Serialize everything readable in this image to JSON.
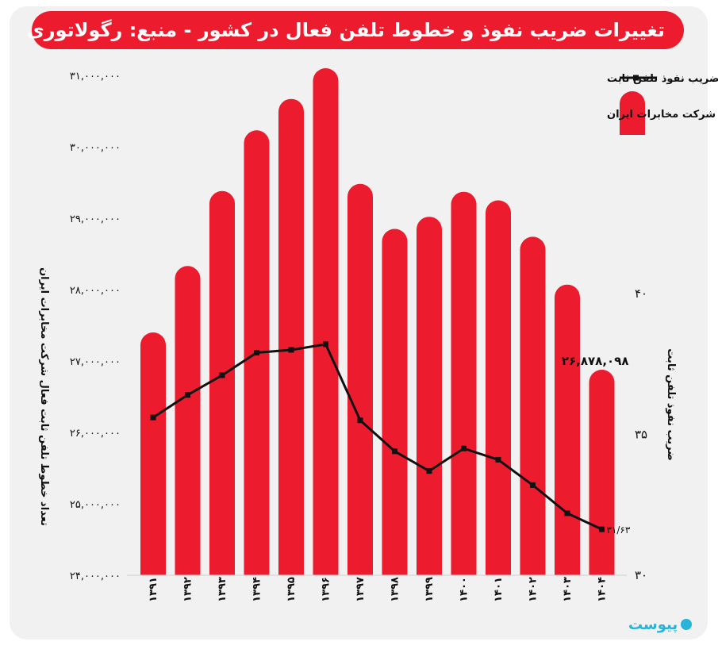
{
  "title": "تغییرات ضریب نفوذ و خطوط تلفن فعال در کشور - منبع: رگولاتوری",
  "logo_text": "پیوست",
  "colors": {
    "bar": "#ec1c2e",
    "line": "#111111",
    "background": "#f1f1f2",
    "brand": "#28b3d8"
  },
  "chart_data": {
    "type": "bar",
    "categories": [
      "۱۳۹۱",
      "۱۳۹۲",
      "۱۳۹۳",
      "۱۳۹۴",
      "۱۳۹۵",
      "۱۳۹۶",
      "۱۳۹۷",
      "۱۳۹۸",
      "۱۳۹۹",
      "۱۴۰۰",
      "۱۴۰۱",
      "۱۴۰۲",
      "۱۴۰۳",
      "۱۴۰۴"
    ],
    "series": [
      {
        "name": "تعداد خطوط تلفن ثابت فعال شرکت مخابرات ایران",
        "type": "bar",
        "axis": "left",
        "values": [
          27400000,
          28330000,
          29380000,
          30230000,
          30670000,
          31100000,
          29480000,
          28850000,
          29020000,
          29370000,
          29250000,
          28740000,
          28070000,
          26878098
        ]
      },
      {
        "name": "ضریب نفوذ تلفن ثابت",
        "type": "line",
        "axis": "right",
        "values": [
          35.6,
          36.4,
          37.1,
          37.9,
          38.0,
          38.2,
          35.5,
          34.4,
          33.7,
          34.5,
          34.1,
          33.2,
          32.2,
          31.63
        ]
      }
    ],
    "y_left": {
      "label": "تعداد خطوط تلفن ثابت فعال شرکت مخابرات ایران",
      "range": [
        24000000,
        31000000
      ],
      "ticks": [
        "۲۴,۰۰۰,۰۰۰",
        "۲۵,۰۰۰,۰۰۰",
        "۲۶,۰۰۰,۰۰۰",
        "۲۷,۰۰۰,۰۰۰",
        "۲۸,۰۰۰,۰۰۰",
        "۲۹,۰۰۰,۰۰۰",
        "۳۰,۰۰۰,۰۰۰",
        "۳۱,۰۰۰,۰۰۰"
      ]
    },
    "y_right": {
      "label": "ضریب نفوذ تلفن ثابت",
      "range": [
        30,
        40
      ],
      "ticks": [
        "۳۰",
        "۳۵",
        "۴۰"
      ]
    },
    "annotations": {
      "last_bar_label": "۲۶,۸۷۸,۰۹۸",
      "last_point_label": "۳۱/۶۳"
    },
    "legend": {
      "position": "top-right",
      "line_label": "ضریب نفوذ تلفن ثابت",
      "bar_label": "تعداد خطوط تلفن ثابت فعال شرکت مخابرات ایران"
    },
    "grid": false
  }
}
